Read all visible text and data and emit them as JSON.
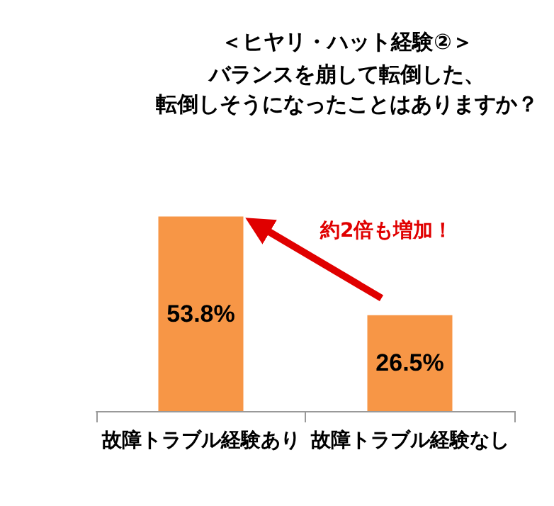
{
  "chart_data": {
    "type": "bar",
    "title": "＜ヒヤリ・ハット経験②＞",
    "subtitle": "バランスを崩して転倒した、転倒しそうになったことはありますか？",
    "categories": [
      "故障トラブル経験あり",
      "故障トラブル経験なし"
    ],
    "values": [
      53.8,
      26.5
    ],
    "color": "#f79646",
    "value_labels": [
      "53.8%",
      "26.5%"
    ],
    "annotations": [
      "約2倍も増加！"
    ],
    "tick_labels": "x",
    "grid": false
  }
}
